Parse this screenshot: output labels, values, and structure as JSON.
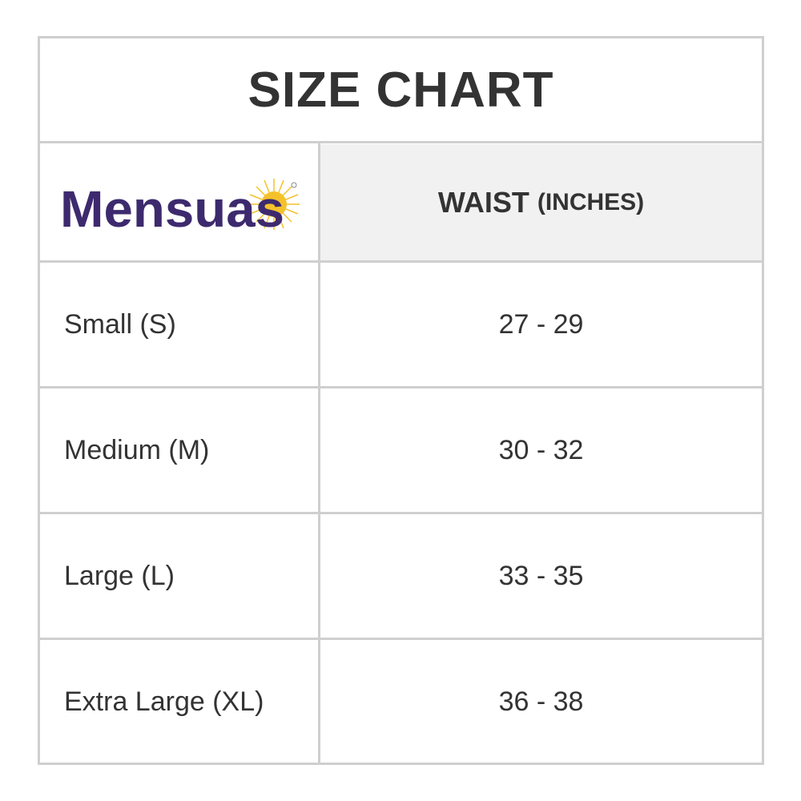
{
  "title": "SIZE CHART",
  "logo": {
    "text": "Mensuas",
    "brand_color": "#3d2a6e",
    "sun_color": "#f5c12b"
  },
  "header": {
    "label": "WAIST",
    "unit": "(INCHES)"
  },
  "rows": [
    {
      "size": "Small (S)",
      "waist": "27 - 29"
    },
    {
      "size": "Medium (M)",
      "waist": "30 - 32"
    },
    {
      "size": "Large (L)",
      "waist": "33 - 35"
    },
    {
      "size": "Extra Large (XL)",
      "waist": "36 - 38"
    }
  ]
}
